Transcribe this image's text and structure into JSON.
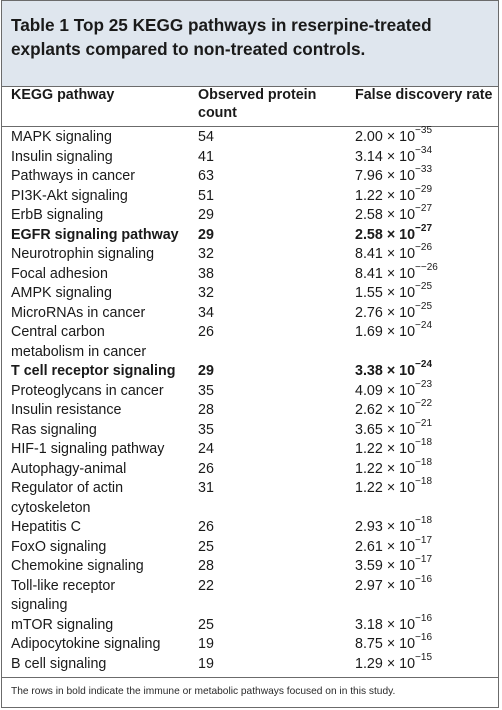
{
  "caption": "Table 1 Top 25 KEGG pathways in reserpine-treated explants compared to non-treated controls.",
  "columns": {
    "path": "KEGG pathway",
    "count": "Observed protein count",
    "fdr": "False discovery rate"
  },
  "rows": [
    {
      "path": "MAPK signaling",
      "count": "54",
      "mant": "2.00",
      "exp": "−35",
      "bold": false,
      "lines": 1
    },
    {
      "path": "Insulin signaling",
      "count": "41",
      "mant": "3.14",
      "exp": "−34",
      "bold": false,
      "lines": 1
    },
    {
      "path": "Pathways in cancer",
      "count": "63",
      "mant": "7.96",
      "exp": "−33",
      "bold": false,
      "lines": 1
    },
    {
      "path": "PI3K-Akt signaling",
      "count": "51",
      "mant": "1.22",
      "exp": "−29",
      "bold": false,
      "lines": 1
    },
    {
      "path": "ErbB signaling",
      "count": "29",
      "mant": "2.58",
      "exp": "−27",
      "bold": false,
      "lines": 1
    },
    {
      "path": "EGFR signaling pathway",
      "count": "29",
      "mant": "2.58",
      "exp": "−27",
      "bold": true,
      "lines": 1
    },
    {
      "path": "Neurotrophin signaling",
      "count": "32",
      "mant": "8.41",
      "exp": "−26",
      "bold": false,
      "lines": 1
    },
    {
      "path": "Focal adhesion",
      "count": "38",
      "mant": "8.41",
      "exp": "−−26",
      "bold": false,
      "lines": 1
    },
    {
      "path": "AMPK signaling",
      "count": "32",
      "mant": "1.55",
      "exp": "−25",
      "bold": false,
      "lines": 1
    },
    {
      "path": "MicroRNAs in cancer",
      "count": "34",
      "mant": "2.76",
      "exp": "−25",
      "bold": false,
      "lines": 1
    },
    {
      "path": "Central carbon metabolism in cancer",
      "count": "26",
      "mant": "1.69",
      "exp": "−24",
      "bold": false,
      "lines": 2
    },
    {
      "path": "T cell receptor signaling",
      "count": "29",
      "mant": "3.38",
      "exp": "−24",
      "bold": true,
      "lines": 1
    },
    {
      "path": "Proteoglycans in cancer",
      "count": "35",
      "mant": "4.09",
      "exp": "−23",
      "bold": false,
      "lines": 1
    },
    {
      "path": "Insulin resistance",
      "count": "28",
      "mant": "2.62",
      "exp": "−22",
      "bold": false,
      "lines": 1
    },
    {
      "path": "Ras signaling",
      "count": "35",
      "mant": "3.65",
      "exp": "−21",
      "bold": false,
      "lines": 1
    },
    {
      "path": "HIF-1 signaling pathway",
      "count": "24",
      "mant": "1.22",
      "exp": "−18",
      "bold": false,
      "lines": 1
    },
    {
      "path": "Autophagy-animal",
      "count": "26",
      "mant": "1.22",
      "exp": "−18",
      "bold": false,
      "lines": 1
    },
    {
      "path": "Regulator of actin cytoskeleton",
      "count": "31",
      "mant": "1.22",
      "exp": "−18",
      "bold": false,
      "lines": 2
    },
    {
      "path": "Hepatitis C",
      "count": "26",
      "mant": "2.93",
      "exp": "−18",
      "bold": false,
      "lines": 1
    },
    {
      "path": "FoxO signaling",
      "count": "25",
      "mant": "2.61",
      "exp": "−17",
      "bold": false,
      "lines": 1
    },
    {
      "path": "Chemokine signaling",
      "count": "28",
      "mant": "3.59",
      "exp": "−17",
      "bold": false,
      "lines": 1
    },
    {
      "path": "Toll-like receptor signaling",
      "count": "22",
      "mant": "2.97",
      "exp": "−16",
      "bold": false,
      "lines": 2
    },
    {
      "path": "mTOR signaling",
      "count": "25",
      "mant": "3.18",
      "exp": "−16",
      "bold": false,
      "lines": 1
    },
    {
      "path": "Adipocytokine signaling",
      "count": "19",
      "mant": "8.75",
      "exp": "−16",
      "bold": false,
      "lines": 1
    },
    {
      "path": "B cell signaling",
      "count": "19",
      "mant": "1.29",
      "exp": "−15",
      "bold": false,
      "lines": 1
    }
  ],
  "fdr_base": "× 10",
  "footnote": "The rows in bold indicate the immune or metabolic pathways focused on in this study.",
  "colors": {
    "caption_bg": "#dfe6ee",
    "rule": "#6b6b6b",
    "text": "#1a1a1a"
  }
}
